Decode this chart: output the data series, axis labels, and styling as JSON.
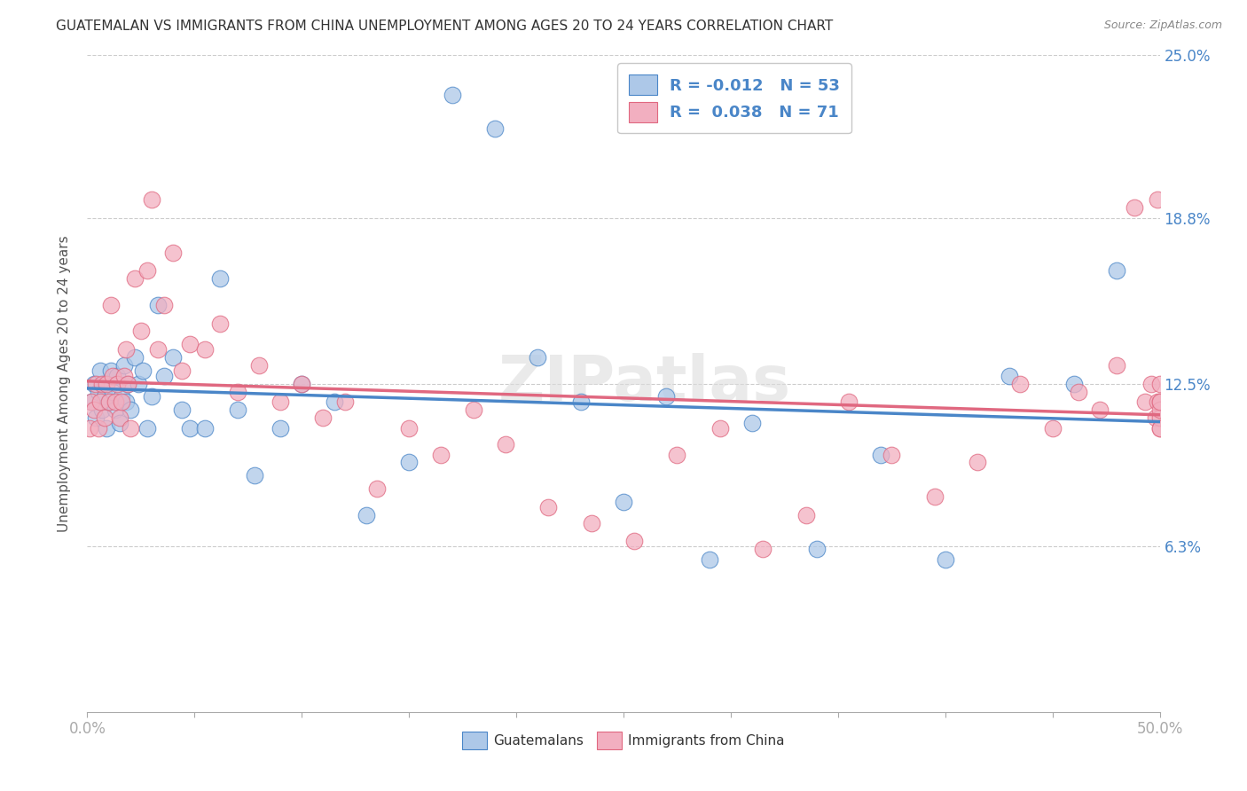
{
  "title": "GUATEMALAN VS IMMIGRANTS FROM CHINA UNEMPLOYMENT AMONG AGES 20 TO 24 YEARS CORRELATION CHART",
  "source": "Source: ZipAtlas.com",
  "ylabel": "Unemployment Among Ages 20 to 24 years",
  "xlim": [
    0.0,
    0.5
  ],
  "ylim": [
    0.0,
    0.25
  ],
  "xlabel_ticks_labels": [
    "0.0%",
    "50.0%"
  ],
  "xlabel_ticks_vals": [
    0.0,
    0.5
  ],
  "ylabel_ticks_labels": [
    "6.3%",
    "12.5%",
    "18.8%",
    "25.0%"
  ],
  "ylabel_ticks_vals": [
    0.063,
    0.125,
    0.188,
    0.25
  ],
  "blue_R": "-0.012",
  "blue_N": "53",
  "pink_R": "0.038",
  "pink_N": "71",
  "blue_color": "#adc8e8",
  "pink_color": "#f2afc0",
  "blue_line_color": "#4a86c8",
  "pink_line_color": "#e06880",
  "tick_color": "#4a86c8",
  "watermark": "ZIPatlas",
  "blue_points_x": [
    0.002,
    0.003,
    0.004,
    0.005,
    0.006,
    0.007,
    0.008,
    0.008,
    0.009,
    0.01,
    0.011,
    0.012,
    0.013,
    0.014,
    0.015,
    0.016,
    0.017,
    0.018,
    0.019,
    0.02,
    0.022,
    0.024,
    0.026,
    0.028,
    0.03,
    0.033,
    0.036,
    0.04,
    0.044,
    0.048,
    0.055,
    0.062,
    0.07,
    0.078,
    0.09,
    0.1,
    0.115,
    0.13,
    0.15,
    0.17,
    0.19,
    0.21,
    0.23,
    0.25,
    0.27,
    0.29,
    0.31,
    0.34,
    0.37,
    0.4,
    0.43,
    0.46,
    0.48
  ],
  "blue_points_y": [
    0.118,
    0.125,
    0.112,
    0.122,
    0.13,
    0.115,
    0.125,
    0.12,
    0.108,
    0.118,
    0.13,
    0.122,
    0.115,
    0.128,
    0.11,
    0.12,
    0.132,
    0.118,
    0.125,
    0.115,
    0.135,
    0.125,
    0.13,
    0.108,
    0.12,
    0.155,
    0.128,
    0.135,
    0.115,
    0.108,
    0.108,
    0.165,
    0.115,
    0.09,
    0.108,
    0.125,
    0.118,
    0.075,
    0.095,
    0.235,
    0.222,
    0.135,
    0.118,
    0.08,
    0.12,
    0.058,
    0.11,
    0.062,
    0.098,
    0.058,
    0.128,
    0.125,
    0.168
  ],
  "pink_points_x": [
    0.001,
    0.002,
    0.003,
    0.004,
    0.005,
    0.006,
    0.007,
    0.008,
    0.009,
    0.01,
    0.011,
    0.012,
    0.013,
    0.014,
    0.015,
    0.016,
    0.017,
    0.018,
    0.019,
    0.02,
    0.022,
    0.025,
    0.028,
    0.03,
    0.033,
    0.036,
    0.04,
    0.044,
    0.048,
    0.055,
    0.062,
    0.07,
    0.08,
    0.09,
    0.1,
    0.11,
    0.12,
    0.135,
    0.15,
    0.165,
    0.18,
    0.195,
    0.215,
    0.235,
    0.255,
    0.275,
    0.295,
    0.315,
    0.335,
    0.355,
    0.375,
    0.395,
    0.415,
    0.435,
    0.45,
    0.462,
    0.472,
    0.48,
    0.488,
    0.493,
    0.496,
    0.498,
    0.499,
    0.499,
    0.5,
    0.5,
    0.5,
    0.5,
    0.5,
    0.5,
    0.5
  ],
  "pink_points_y": [
    0.108,
    0.118,
    0.115,
    0.125,
    0.108,
    0.118,
    0.125,
    0.112,
    0.125,
    0.118,
    0.155,
    0.128,
    0.118,
    0.125,
    0.112,
    0.118,
    0.128,
    0.138,
    0.125,
    0.108,
    0.165,
    0.145,
    0.168,
    0.195,
    0.138,
    0.155,
    0.175,
    0.13,
    0.14,
    0.138,
    0.148,
    0.122,
    0.132,
    0.118,
    0.125,
    0.112,
    0.118,
    0.085,
    0.108,
    0.098,
    0.115,
    0.102,
    0.078,
    0.072,
    0.065,
    0.098,
    0.108,
    0.062,
    0.075,
    0.118,
    0.098,
    0.082,
    0.095,
    0.125,
    0.108,
    0.122,
    0.115,
    0.132,
    0.192,
    0.118,
    0.125,
    0.112,
    0.118,
    0.195,
    0.108,
    0.118,
    0.125,
    0.112,
    0.108,
    0.115,
    0.118
  ]
}
